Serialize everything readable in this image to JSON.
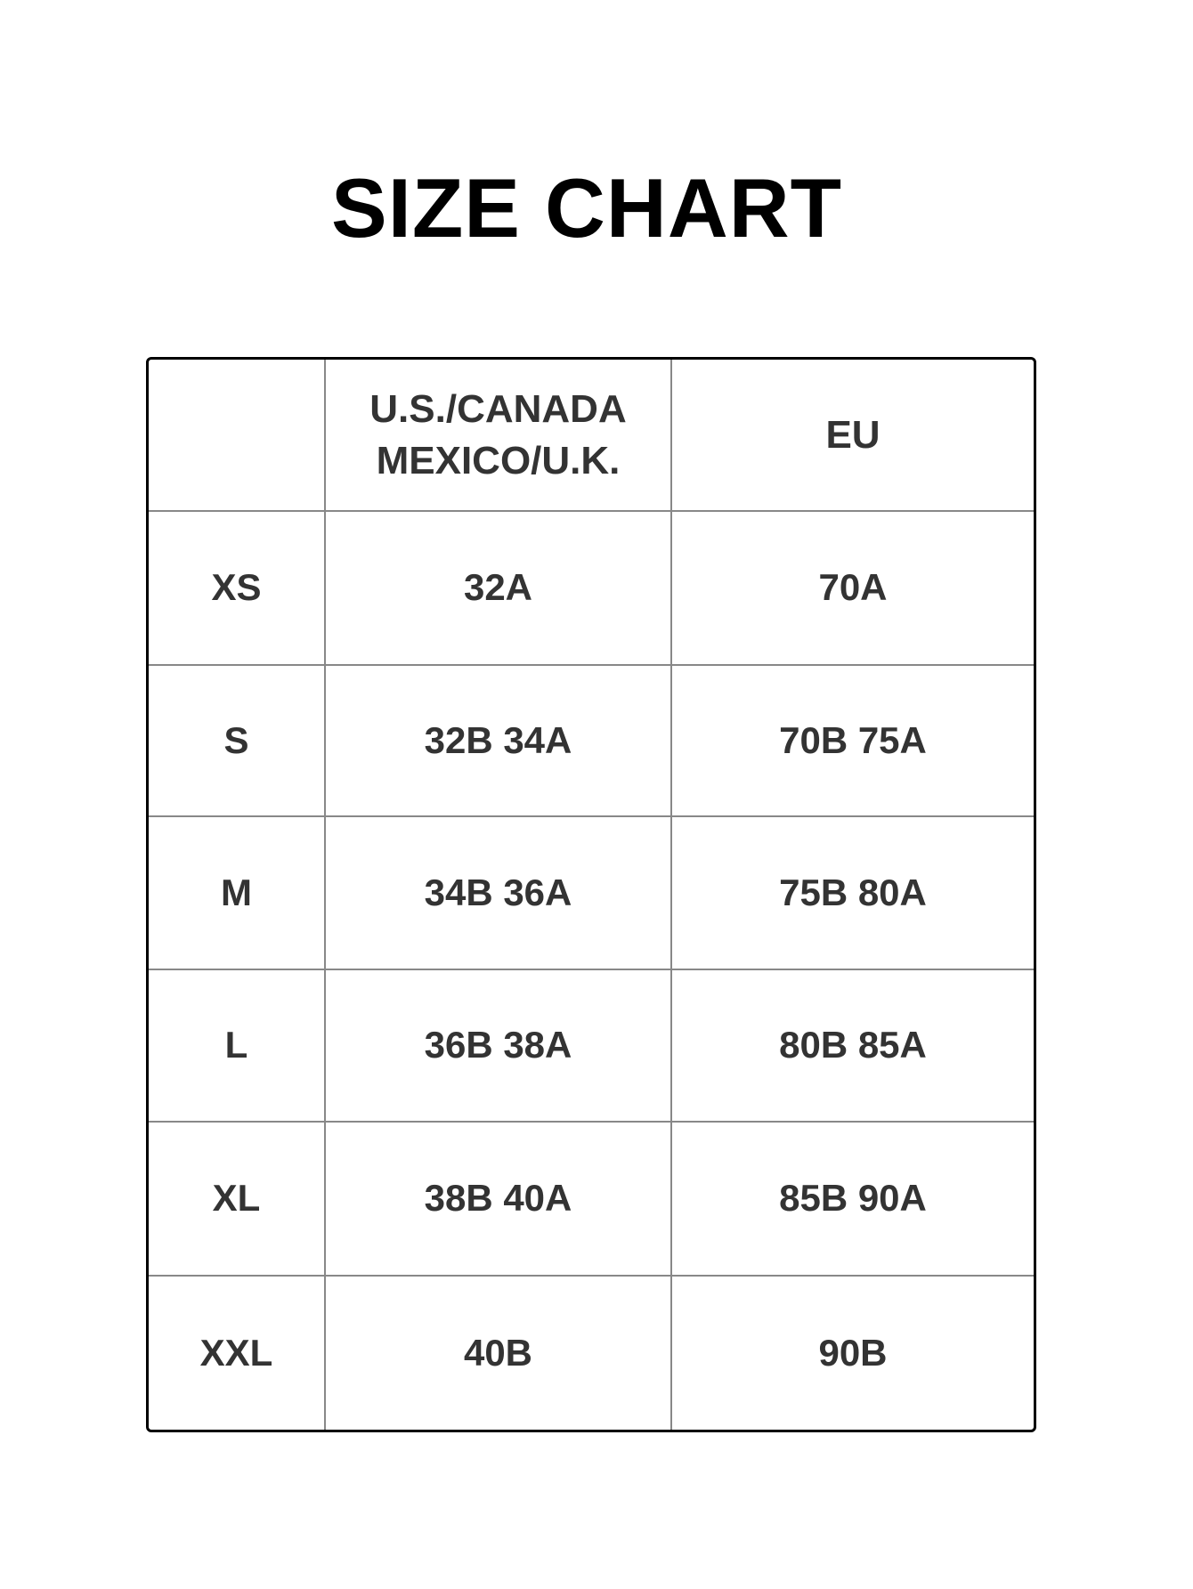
{
  "title": "SIZE CHART",
  "table": {
    "headers": [
      "",
      "U.S./CANADA\nMEXICO/U.K.",
      "EU"
    ],
    "header_lines": [
      "U.S./CANADA",
      "MEXICO/U.K."
    ],
    "rows": [
      [
        "XS",
        "32A",
        "70A"
      ],
      [
        "S",
        "32B 34A",
        "70B 75A"
      ],
      [
        "M",
        "34B 36A",
        "75B 80A"
      ],
      [
        "L",
        "36B 38A",
        "80B 85A"
      ],
      [
        "XL",
        "38B 40A",
        "85B 90A"
      ],
      [
        "XXL",
        "40B",
        "90B"
      ]
    ]
  }
}
